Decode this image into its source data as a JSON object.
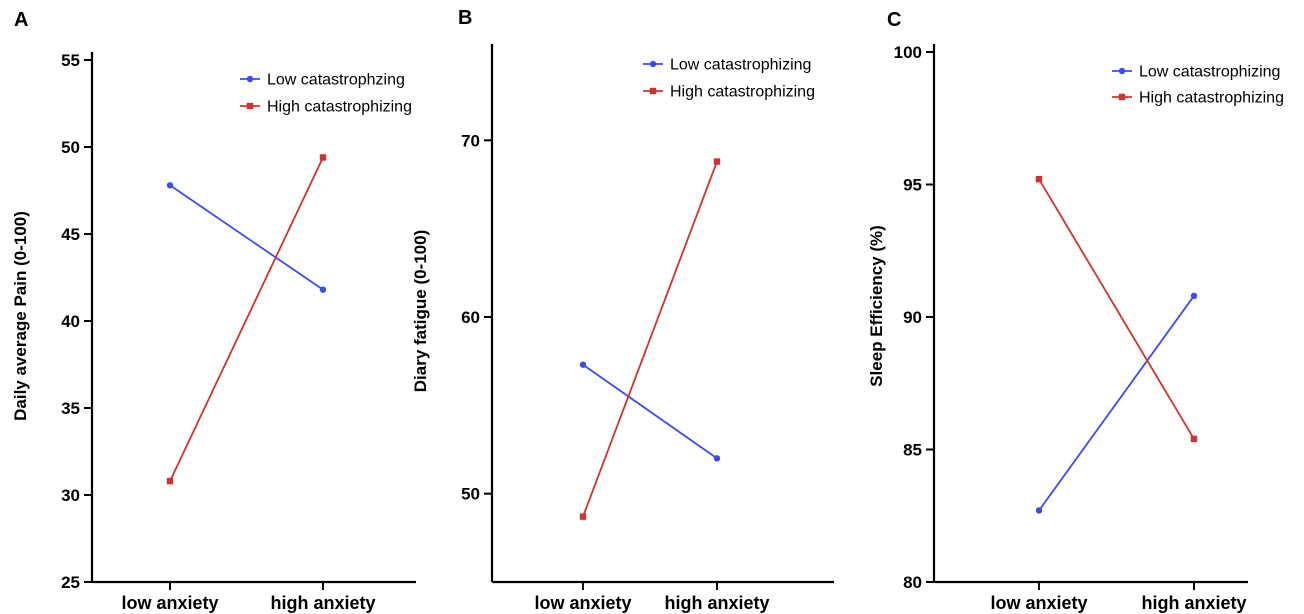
{
  "chart_data": [
    {
      "panel": "A",
      "type": "line",
      "categories": [
        "low anxiety",
        "high anxiety"
      ],
      "ylabel": "Daily average Pain (0-100)",
      "ylim": [
        25,
        55
      ],
      "yticks": [
        25,
        30,
        35,
        40,
        45,
        50,
        55
      ],
      "legend_position": "top-right",
      "series": [
        {
          "name": "Low catastrophzing",
          "color": "#3b4cf5",
          "marker": "circle",
          "values": [
            47.8,
            41.8
          ]
        },
        {
          "name": "High catastrophizing",
          "color": "#d0332f",
          "marker": "square",
          "values": [
            30.8,
            49.4
          ]
        }
      ]
    },
    {
      "panel": "B",
      "type": "line",
      "categories": [
        "low anxiety",
        "high anxiety"
      ],
      "ylabel": "Diary fatigue  (0-100)",
      "ylim": [
        45,
        75
      ],
      "yticks": [
        50,
        60,
        70
      ],
      "legend_position": "top-right",
      "series": [
        {
          "name": "Low catastrophizing",
          "color": "#3b4cf5",
          "marker": "circle",
          "values": [
            57.3,
            52.0
          ]
        },
        {
          "name": "High catastrophizing",
          "color": "#d0332f",
          "marker": "square",
          "values": [
            48.7,
            68.8
          ]
        }
      ]
    },
    {
      "panel": "C",
      "type": "line",
      "categories": [
        "low anxiety",
        "high anxiety"
      ],
      "ylabel": "Sleep Efficiency (%)",
      "ylim": [
        80,
        100
      ],
      "yticks": [
        80,
        85,
        90,
        95,
        100
      ],
      "legend_position": "top-right",
      "series": [
        {
          "name": "Low catastrophizing",
          "color": "#3b4cf5",
          "marker": "circle",
          "values": [
            82.7,
            90.8
          ]
        },
        {
          "name": "High catastrophizing",
          "color": "#d0332f",
          "marker": "square",
          "values": [
            95.2,
            85.4
          ]
        }
      ]
    }
  ]
}
